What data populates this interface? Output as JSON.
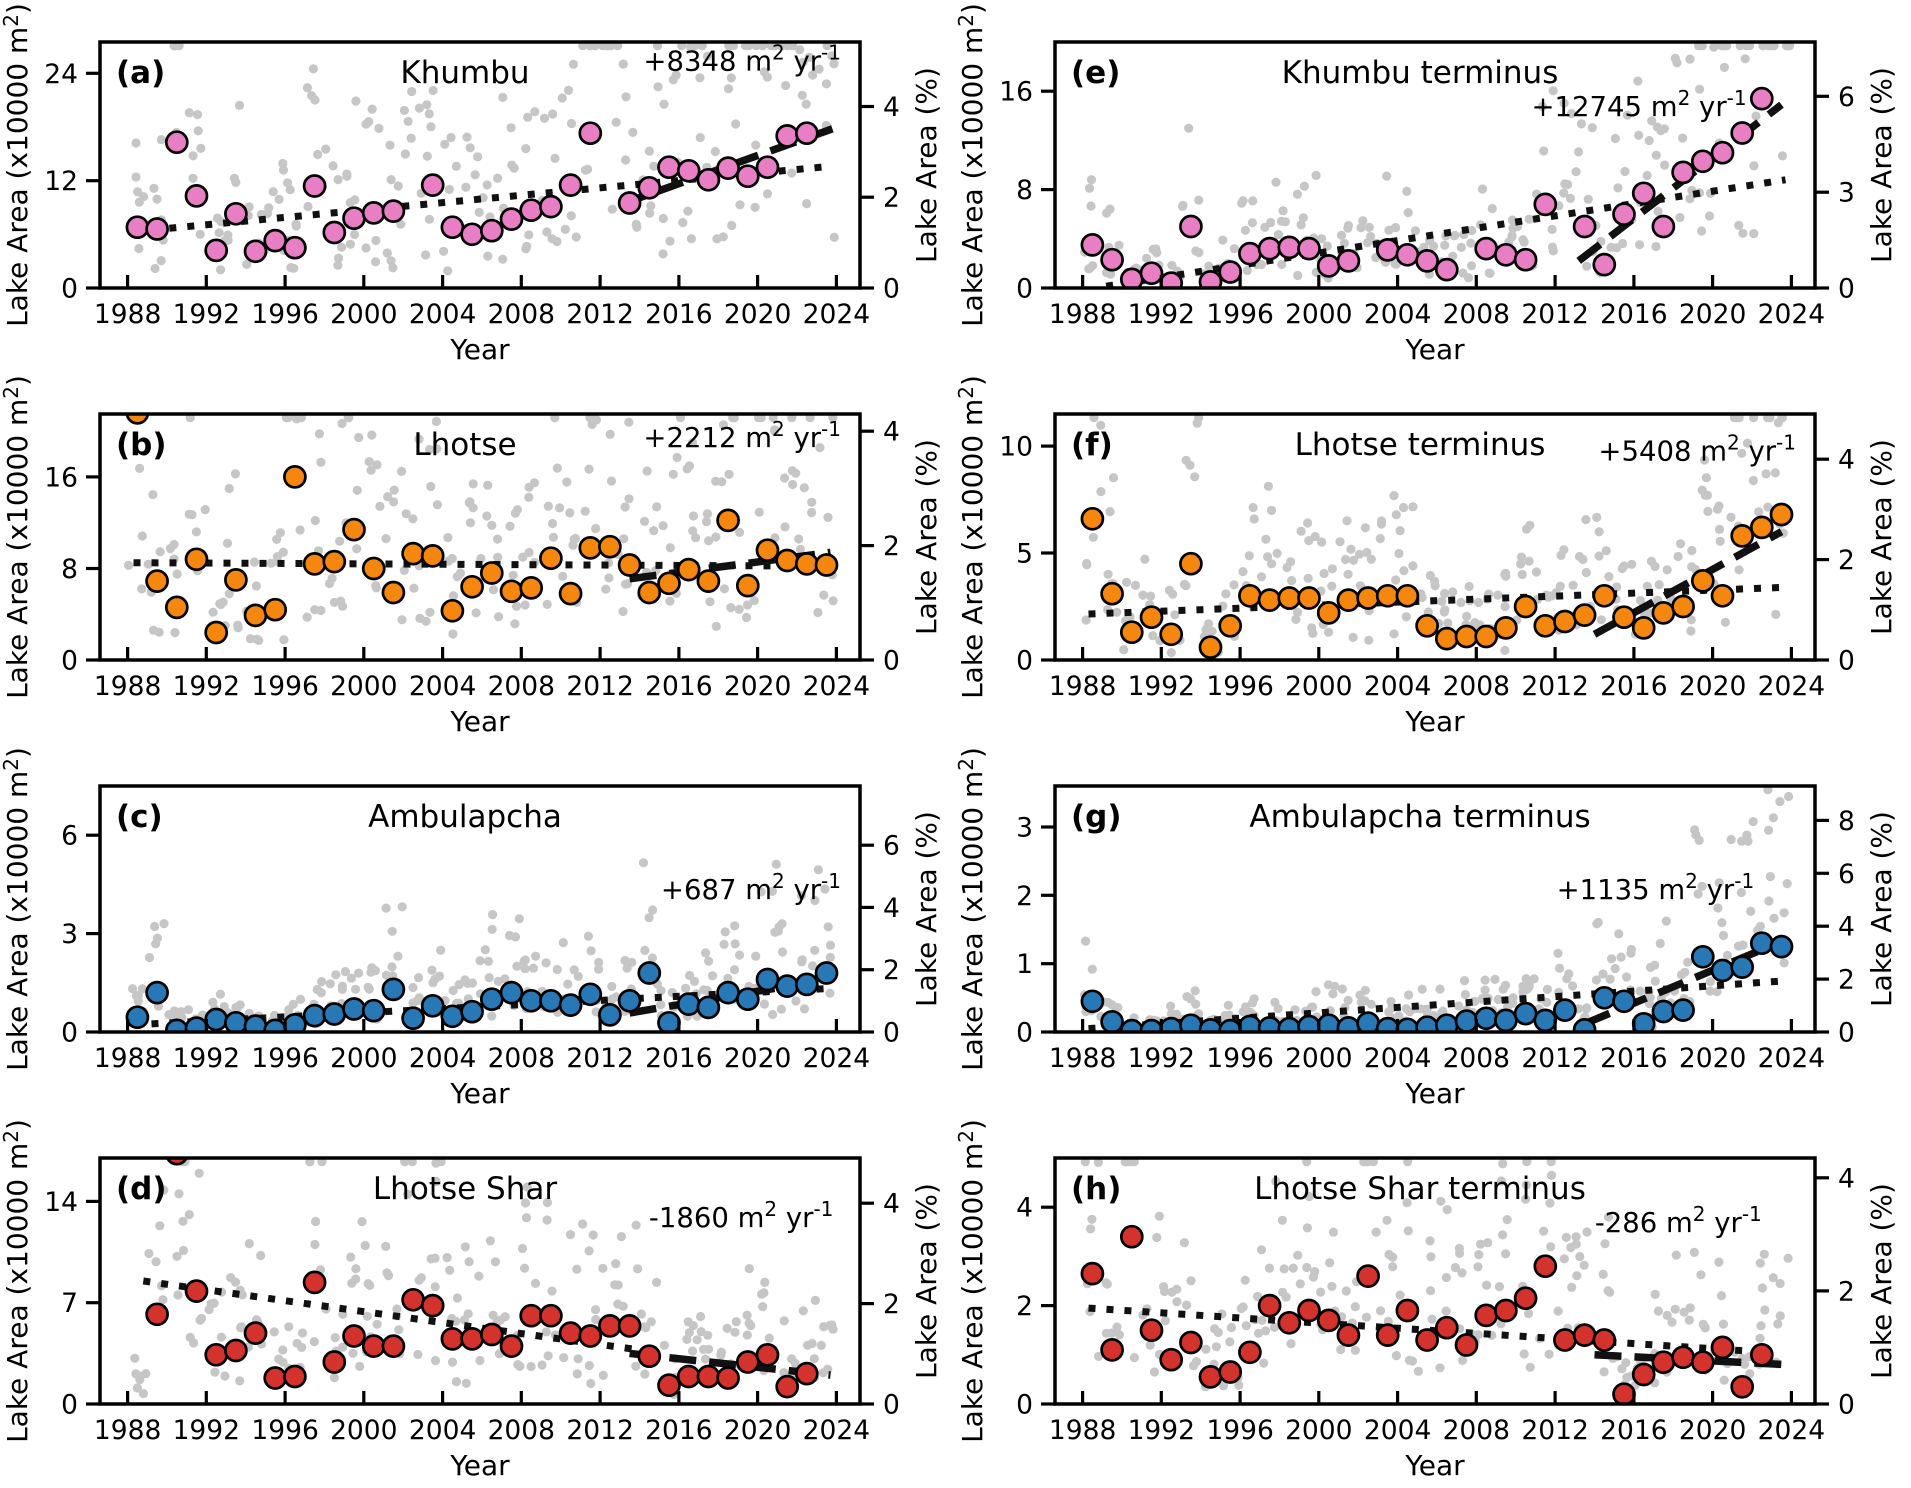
{
  "figure": {
    "background": "#ffffff",
    "xlabel": "Year",
    "ylabel": {
      "pre": "Lake Area (x10000 m",
      "sup": "2",
      "post": ")"
    },
    "y2label": "Lake Area (%)",
    "x_ticks": [
      1988,
      1992,
      1996,
      2000,
      2004,
      2008,
      2012,
      2016,
      2020,
      2024
    ],
    "x_range": [
      1986.6,
      2025.2
    ],
    "rate_units": {
      "m_base": " m",
      "m_sup": "2",
      "yr_base": " yr",
      "yr_sup": "-1"
    },
    "colors": {
      "axis": "#000000",
      "gray_scatter": "#c6c6c6",
      "trend": "#111111",
      "pink": "#e87fc4",
      "orange": "#f5860e",
      "blue": "#2878b5",
      "red": "#d4322c"
    }
  },
  "chart_data": {
    "type": "scatter",
    "shared_x": {
      "label": "Year",
      "start_year": 1988,
      "end_year": 2023,
      "tick_labels": [
        1988,
        1992,
        1996,
        2000,
        2004,
        2008,
        2012,
        2016,
        2020,
        2024
      ]
    },
    "panels": [
      {
        "id": "a",
        "letter": "(a)",
        "title": "Khumbu",
        "rate": "+8348",
        "color_key": "pink",
        "ymax": 27.5,
        "yticks": [
          0,
          12,
          24
        ],
        "y2max": 5.42,
        "y2ticks": [
          0,
          2,
          4
        ],
        "annual": [
          6.8,
          6.6,
          16.3,
          10.3,
          4.2,
          8.3,
          4.1,
          5.3,
          4.5,
          11.4,
          6.2,
          7.8,
          8.4,
          8.6,
          null,
          11.5,
          6.8,
          6.0,
          6.4,
          7.7,
          8.7,
          9.1,
          11.5,
          17.3,
          null,
          9.5,
          11.2,
          13.5,
          13.1,
          12.1,
          13.4,
          12.5,
          13.5,
          17.0,
          17.3,
          null
        ],
        "trend_dotted": [
          1988.3,
          6.3,
          2023.7,
          13.6
        ],
        "trend_dashed": [
          2013.0,
          9.3,
          2023.8,
          17.8
        ],
        "ann": [
          0.975,
          0.115
        ],
        "scatter": {
          "seed": 11,
          "per_year": 7,
          "mmin": 0.25,
          "mspan": 2.3,
          "abs": 6
        }
      },
      {
        "id": "b",
        "letter": "(b)",
        "title": "Lhotse",
        "rate": "+2212",
        "color_key": "orange",
        "ymax": 21.5,
        "yticks": [
          0,
          8,
          16
        ],
        "y2max": 4.3,
        "y2ticks": [
          0,
          2,
          4
        ],
        "annual": [
          21.6,
          6.9,
          4.6,
          8.8,
          2.4,
          7.0,
          3.9,
          4.4,
          16.0,
          8.4,
          8.6,
          11.4,
          8.0,
          5.9,
          9.3,
          9.1,
          4.3,
          6.4,
          7.6,
          6.0,
          6.3,
          8.9,
          5.8,
          9.8,
          9.9,
          8.3,
          5.9,
          6.7,
          7.9,
          6.9,
          12.2,
          6.5,
          9.6,
          8.7,
          8.4,
          8.3
        ],
        "trend_dotted": [
          1988.3,
          8.5,
          2023.7,
          8.2
        ],
        "trend_dashed": [
          2013.5,
          7.1,
          2023.7,
          9.4
        ],
        "ann": [
          0.975,
          0.135
        ],
        "scatter": {
          "seed": 22,
          "per_year": 7,
          "mmin": 0.25,
          "mspan": 2.2,
          "abs": 6
        }
      },
      {
        "id": "c",
        "letter": "(c)",
        "title": "Ambulapcha",
        "rate": "+687",
        "color_key": "blue",
        "ymax": 7.5,
        "yticks": [
          0,
          3,
          6
        ],
        "y2max": 7.9,
        "y2ticks": [
          0,
          2,
          4,
          6
        ],
        "annual": [
          0.45,
          1.2,
          0.05,
          0.12,
          0.38,
          0.28,
          0.18,
          0.05,
          0.22,
          0.5,
          0.55,
          0.7,
          0.65,
          1.3,
          0.42,
          0.8,
          0.48,
          0.62,
          1.0,
          1.2,
          0.95,
          0.95,
          0.82,
          1.15,
          0.52,
          0.95,
          1.8,
          0.28,
          0.85,
          0.75,
          1.2,
          1.0,
          1.6,
          1.4,
          1.45,
          1.8
        ],
        "trend_dotted": [
          1988.3,
          0.22,
          2023.7,
          1.33
        ],
        "trend_dashed": [
          2013.5,
          0.58,
          2023.7,
          1.62
        ],
        "ann": [
          0.975,
          0.46
        ],
        "scatter": {
          "seed": 33,
          "per_year": 7,
          "mmin": 0.3,
          "mspan": 2.4,
          "abs": 1.6
        }
      },
      {
        "id": "d",
        "letter": "(d)",
        "title": "Lhotse Shar",
        "rate": "-1860",
        "color_key": "red",
        "ymax": 17.0,
        "yticks": [
          0,
          7,
          14
        ],
        "y2max": 4.9,
        "y2ticks": [
          0,
          2,
          4
        ],
        "annual": [
          null,
          6.2,
          17.3,
          7.8,
          3.4,
          3.7,
          4.9,
          1.8,
          1.9,
          8.4,
          2.9,
          4.7,
          4.0,
          4.0,
          7.2,
          6.8,
          4.5,
          4.5,
          4.8,
          4.0,
          6.1,
          6.1,
          4.9,
          4.7,
          5.4,
          5.4,
          3.3,
          1.3,
          1.9,
          1.9,
          1.8,
          2.9,
          3.4,
          1.2,
          2.1,
          null
        ],
        "trend_dotted": [
          1988.8,
          8.5,
          2014.2,
          3.7
        ],
        "trend_dashed": [
          2013.5,
          3.5,
          2023.7,
          2.0
        ],
        "ann": [
          0.965,
          0.28
        ],
        "scatter": {
          "seed": 44,
          "per_year": 7,
          "mmin": 0.25,
          "mspan": 2.2,
          "abs": 5
        }
      },
      {
        "id": "e",
        "letter": "(e)",
        "title": "Khumbu terminus",
        "rate": "+12745",
        "color_key": "pink",
        "ymax": 20.0,
        "yticks": [
          0,
          8,
          16
        ],
        "y2max": 7.7,
        "y2ticks": [
          0,
          3,
          6
        ],
        "annual": [
          3.5,
          2.3,
          0.7,
          1.2,
          0.4,
          5.0,
          0.5,
          1.3,
          2.8,
          3.2,
          3.3,
          3.2,
          1.8,
          2.2,
          null,
          3.1,
          2.7,
          2.2,
          1.5,
          null,
          3.2,
          2.7,
          2.3,
          6.8,
          null,
          5.0,
          1.9,
          6.0,
          7.7,
          5.0,
          9.4,
          10.3,
          11.0,
          12.6,
          15.4,
          null
        ],
        "trend_dotted": [
          1989.2,
          0.15,
          2023.7,
          8.8
        ],
        "trend_dashed": [
          2013.2,
          2.2,
          2023.5,
          14.9
        ],
        "ann": [
          0.91,
          0.3
        ],
        "scatter": {
          "seed": 55,
          "per_year": 7,
          "mmin": 0.25,
          "mspan": 2.4,
          "abs": 3.2
        }
      },
      {
        "id": "f",
        "letter": "(f)",
        "title": "Lhotse terminus",
        "rate": "+5408",
        "color_key": "orange",
        "ymax": 11.5,
        "yticks": [
          0,
          5,
          10
        ],
        "y2max": 4.9,
        "y2ticks": [
          0,
          2,
          4
        ],
        "annual": [
          6.6,
          3.1,
          1.3,
          2.0,
          1.2,
          4.5,
          0.6,
          1.6,
          3.0,
          2.8,
          2.9,
          2.9,
          2.2,
          2.8,
          2.9,
          3.0,
          3.0,
          1.6,
          1.0,
          1.1,
          1.1,
          1.5,
          2.5,
          1.6,
          1.8,
          2.1,
          3.0,
          2.0,
          1.5,
          2.2,
          2.5,
          3.7,
          3.0,
          5.8,
          6.2,
          6.8
        ],
        "trend_dotted": [
          1988.3,
          2.15,
          2023.7,
          3.4
        ],
        "trend_dashed": [
          2014.0,
          1.2,
          2023.5,
          6.0
        ],
        "ann": [
          0.975,
          0.19
        ],
        "scatter": {
          "seed": 66,
          "per_year": 7,
          "mmin": 0.25,
          "mspan": 2.3,
          "abs": 2.6
        }
      },
      {
        "id": "g",
        "letter": "(g)",
        "title": "Ambulapcha terminus",
        "rate": "+1135",
        "color_key": "blue",
        "ymax": 3.6,
        "yticks": [
          0,
          1,
          2,
          3
        ],
        "y2max": 9.3,
        "y2ticks": [
          0,
          2,
          4,
          6,
          8
        ],
        "annual": [
          0.45,
          0.15,
          0.02,
          0.02,
          0.05,
          0.1,
          0.03,
          0.02,
          0.08,
          0.06,
          0.05,
          0.08,
          0.1,
          0.06,
          0.13,
          0.05,
          0.04,
          0.07,
          0.1,
          0.16,
          0.2,
          0.17,
          0.27,
          0.17,
          0.32,
          0.03,
          0.5,
          0.45,
          0.12,
          0.3,
          0.32,
          1.1,
          0.9,
          0.95,
          1.3,
          1.25
        ],
        "trend_dotted": [
          1988.3,
          0.05,
          2023.7,
          0.75
        ],
        "trend_dashed": [
          2013.5,
          0.12,
          2023.7,
          1.35
        ],
        "ann": [
          0.92,
          0.46
        ],
        "scatter": {
          "seed": 77,
          "per_year": 7,
          "mmin": 0.3,
          "mspan": 2.5,
          "abs": 1.1
        }
      },
      {
        "id": "h",
        "letter": "(h)",
        "title": "Lhotse Shar terminus",
        "rate": "-286",
        "color_key": "red",
        "ymax": 5.0,
        "yticks": [
          0,
          2,
          4
        ],
        "y2max": 4.35,
        "y2ticks": [
          0,
          2,
          4
        ],
        "annual": [
          2.65,
          1.1,
          3.4,
          1.5,
          0.9,
          1.25,
          0.55,
          0.65,
          1.05,
          2.0,
          1.65,
          1.9,
          1.7,
          1.4,
          2.6,
          1.4,
          1.9,
          1.3,
          1.55,
          1.2,
          1.8,
          1.9,
          2.15,
          2.8,
          1.3,
          1.4,
          1.3,
          0.2,
          0.6,
          0.85,
          0.95,
          0.85,
          1.15,
          0.35,
          1.0,
          null
        ],
        "trend_dotted": [
          1988.3,
          1.95,
          2022.8,
          1.05
        ],
        "trend_dashed": [
          2014.0,
          1.0,
          2023.7,
          0.8
        ],
        "ann": [
          0.93,
          0.3
        ],
        "scatter": {
          "seed": 88,
          "per_year": 7,
          "mmin": 0.25,
          "mspan": 2.3,
          "abs": 1.3
        }
      }
    ],
    "legend": "none",
    "grid": false,
    "notes": "Gray background points are sub-annual observations; large colored circles are annual means; dotted line = full-period trend; dashed line = post-2013 trend; annotation is trend rate in m2 per yr."
  }
}
